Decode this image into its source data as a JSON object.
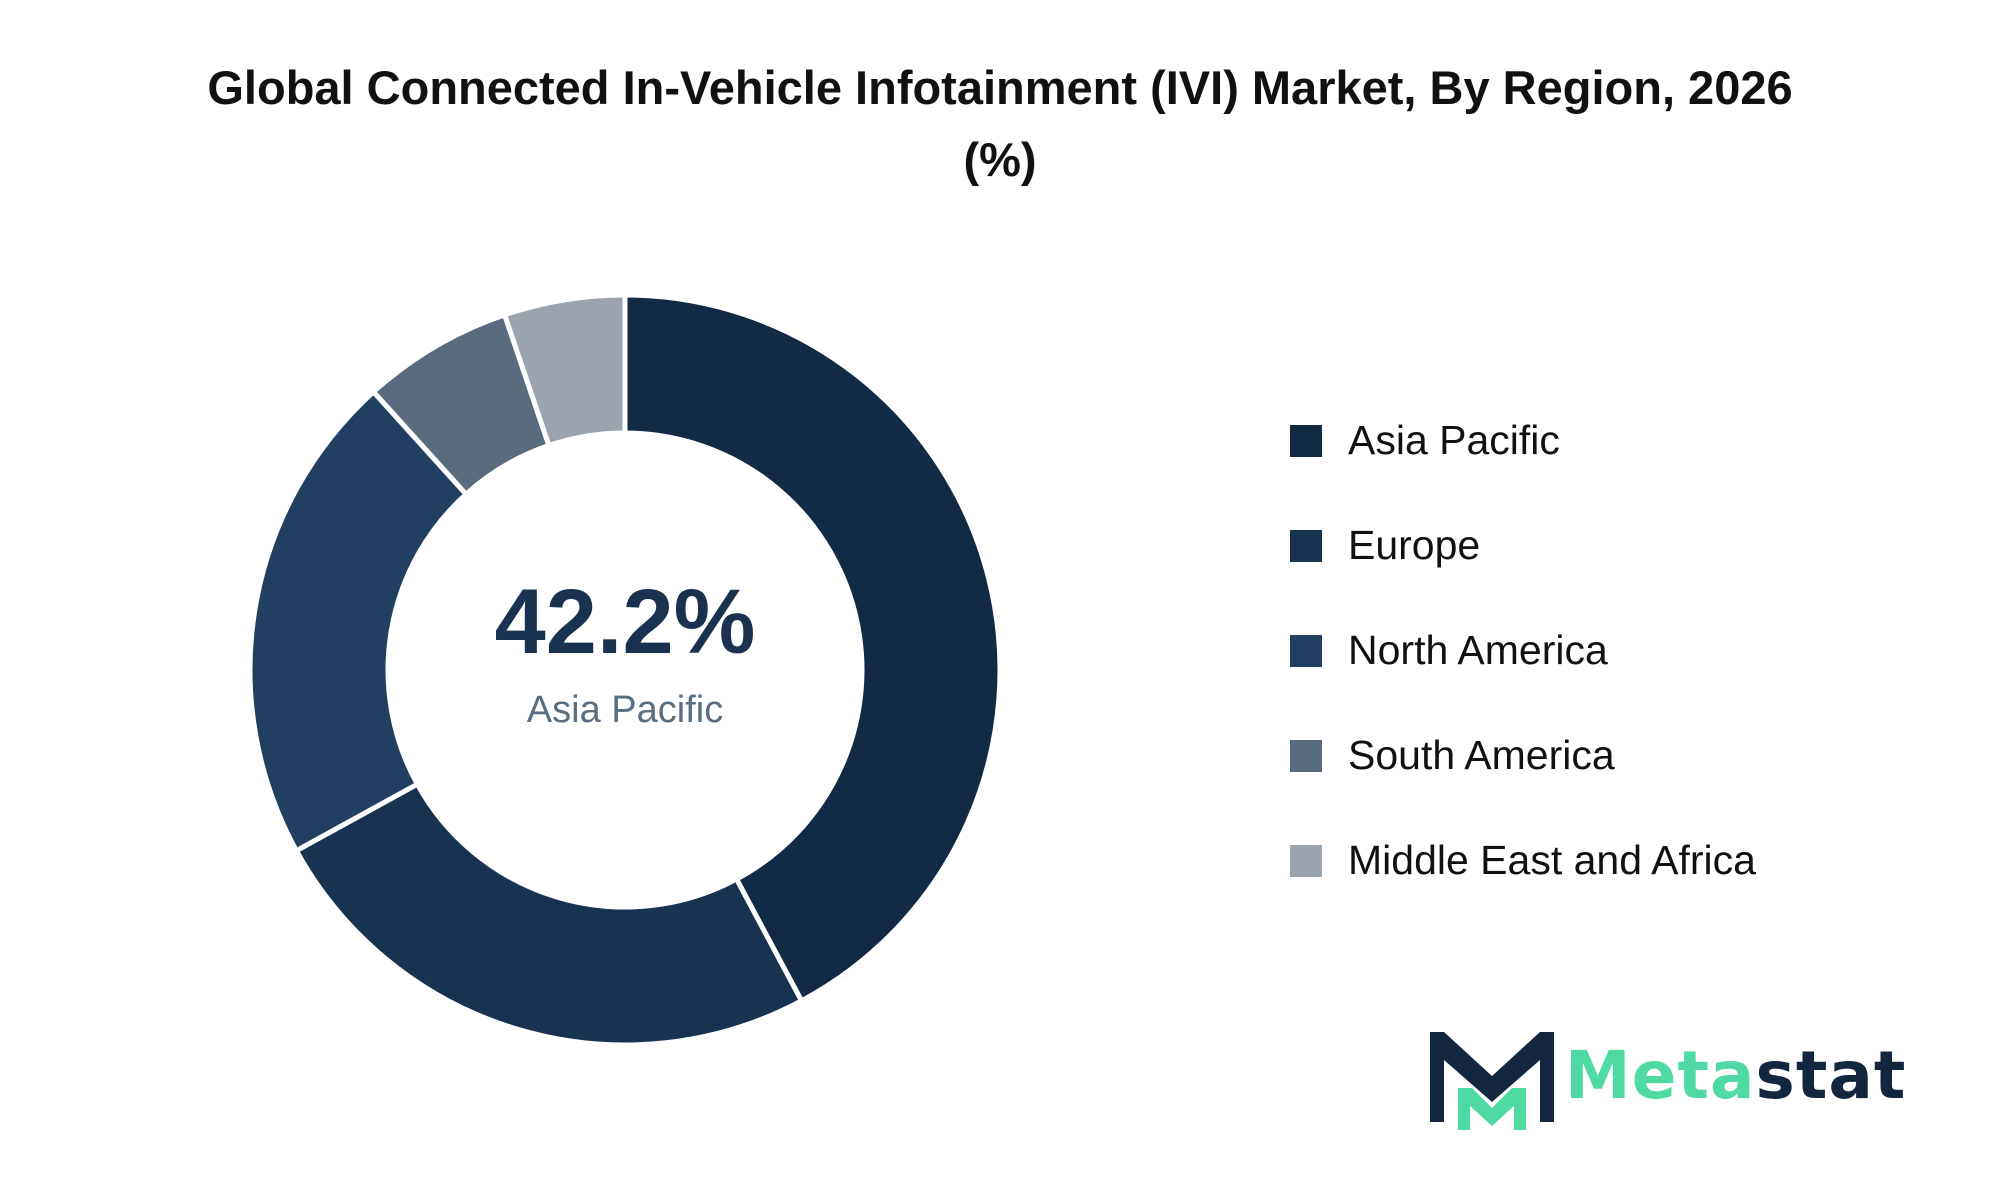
{
  "chart_data": {
    "type": "pie",
    "title": "Global Connected In-Vehicle Infotainment (IVI) Market, By Region, 2026 (%)",
    "donut": true,
    "categories": [
      "Asia Pacific",
      "Europe",
      "North America",
      "South America",
      "Middle East and Africa"
    ],
    "values": [
      42.2,
      24.8,
      21.3,
      6.5,
      5.2
    ],
    "colors": [
      "#132a44",
      "#18324f",
      "#223f62",
      "#5a6b7d",
      "#9aa3ae"
    ],
    "center_value": "42.2%",
    "center_label": "Asia Pacific",
    "legend_position": "right"
  },
  "logo": {
    "text_part_1": "Meta",
    "text_part_2": "stat",
    "colors": [
      "#4fd9a3",
      "#14263d"
    ]
  }
}
